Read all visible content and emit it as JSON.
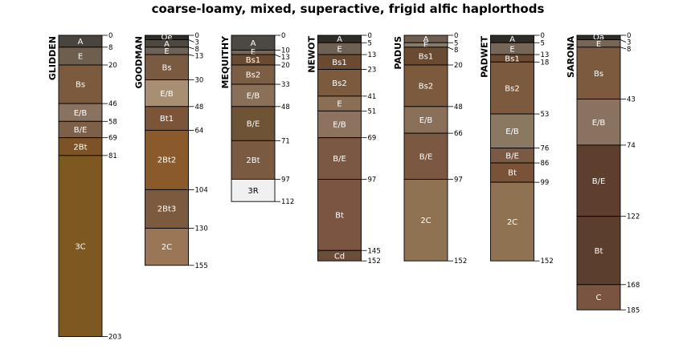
{
  "title": "coarse-loamy, mixed, superactive, frigid alfic haplorthods",
  "max_depth_cm": 203,
  "profiles": [
    {
      "name": "GLIDDEN",
      "horizons": [
        {
          "name": "A",
          "top": 0,
          "bottom": 8,
          "color": "#4a443e"
        },
        {
          "name": "E",
          "top": 8,
          "bottom": 20,
          "color": "#6e5e4e"
        },
        {
          "name": "Bs",
          "top": 20,
          "bottom": 46,
          "color": "#7c5a3e"
        },
        {
          "name": "E/B",
          "top": 46,
          "bottom": 58,
          "color": "#8a7260"
        },
        {
          "name": "B/E",
          "top": 58,
          "bottom": 69,
          "color": "#7e6048"
        },
        {
          "name": "2Bt",
          "top": 69,
          "bottom": 81,
          "color": "#7c5326"
        },
        {
          "name": "3C",
          "top": 81,
          "bottom": 203,
          "color": "#7d5820"
        }
      ]
    },
    {
      "name": "GOODMAN",
      "horizons": [
        {
          "name": "Oe",
          "top": 0,
          "bottom": 3,
          "color": "#2f2b27"
        },
        {
          "name": "A",
          "top": 3,
          "bottom": 8,
          "color": "#4e4840"
        },
        {
          "name": "E",
          "top": 8,
          "bottom": 13,
          "color": "#6e6256"
        },
        {
          "name": "Bs",
          "top": 13,
          "bottom": 30,
          "color": "#7a5a40"
        },
        {
          "name": "E/B",
          "top": 30,
          "bottom": 48,
          "color": "#a88e72"
        },
        {
          "name": "Bt1",
          "top": 48,
          "bottom": 64,
          "color": "#7c5438"
        },
        {
          "name": "2Bt2",
          "top": 64,
          "bottom": 104,
          "color": "#8a5a2a"
        },
        {
          "name": "2Bt3",
          "top": 104,
          "bottom": 130,
          "color": "#7c5a3e"
        },
        {
          "name": "2C",
          "top": 130,
          "bottom": 155,
          "color": "#9a7656"
        }
      ]
    },
    {
      "name": "MEQUITHY",
      "horizons": [
        {
          "name": "A",
          "top": 0,
          "bottom": 10,
          "color": "#4e4842"
        },
        {
          "name": "E",
          "top": 10,
          "bottom": 13,
          "color": "#766658"
        },
        {
          "name": "Bs1",
          "top": 13,
          "bottom": 20,
          "color": "#6a4a30"
        },
        {
          "name": "Bs2",
          "top": 20,
          "bottom": 33,
          "color": "#7c5e44"
        },
        {
          "name": "E/B",
          "top": 33,
          "bottom": 48,
          "color": "#8a7058"
        },
        {
          "name": "B/E",
          "top": 48,
          "bottom": 71,
          "color": "#6e5434"
        },
        {
          "name": "2Bt",
          "top": 71,
          "bottom": 97,
          "color": "#7a5a40"
        },
        {
          "name": "3R",
          "top": 97,
          "bottom": 112,
          "color": "#f0f0f0"
        }
      ]
    },
    {
      "name": "NEWOT",
      "horizons": [
        {
          "name": "A",
          "top": 0,
          "bottom": 5,
          "color": "#2f2b27"
        },
        {
          "name": "E",
          "top": 5,
          "bottom": 13,
          "color": "#6e6052"
        },
        {
          "name": "Bs1",
          "top": 13,
          "bottom": 23,
          "color": "#6a4a30"
        },
        {
          "name": "Bs2",
          "top": 23,
          "bottom": 41,
          "color": "#7c5a3e"
        },
        {
          "name": "E",
          "top": 41,
          "bottom": 51,
          "color": "#8a6e56"
        },
        {
          "name": "E/B",
          "top": 51,
          "bottom": 69,
          "color": "#8e7260"
        },
        {
          "name": "B/E",
          "top": 69,
          "bottom": 97,
          "color": "#7a5844"
        },
        {
          "name": "Bt",
          "top": 97,
          "bottom": 145,
          "color": "#7c5442"
        },
        {
          "name": "Cd",
          "top": 145,
          "bottom": 152,
          "color": "#6a4e3a"
        }
      ]
    },
    {
      "name": "PADUS",
      "horizons": [
        {
          "name": "A",
          "top": 0,
          "bottom": 5,
          "color": "#6e5e50"
        },
        {
          "name": "E",
          "top": 5,
          "bottom": 8,
          "color": "#8a7a6c"
        },
        {
          "name": "Bs1",
          "top": 8,
          "bottom": 20,
          "color": "#6a4a30"
        },
        {
          "name": "Bs2",
          "top": 20,
          "bottom": 48,
          "color": "#7c5a3e"
        },
        {
          "name": "E/B",
          "top": 48,
          "bottom": 66,
          "color": "#8a7058"
        },
        {
          "name": "B/E",
          "top": 66,
          "bottom": 97,
          "color": "#7a5842"
        },
        {
          "name": "2C",
          "top": 97,
          "bottom": 152,
          "color": "#8e7252"
        }
      ]
    },
    {
      "name": "PADWET",
      "horizons": [
        {
          "name": "A",
          "top": 0,
          "bottom": 5,
          "color": "#2f2b27"
        },
        {
          "name": "E",
          "top": 5,
          "bottom": 13,
          "color": "#766658"
        },
        {
          "name": "Bs1",
          "top": 13,
          "bottom": 18,
          "color": "#6a4a30"
        },
        {
          "name": "Bs2",
          "top": 18,
          "bottom": 53,
          "color": "#7c5a3e"
        },
        {
          "name": "E/B",
          "top": 53,
          "bottom": 76,
          "color": "#8a7860"
        },
        {
          "name": "B/E",
          "top": 76,
          "bottom": 86,
          "color": "#7a5a42"
        },
        {
          "name": "Bt",
          "top": 86,
          "bottom": 99,
          "color": "#7a5238"
        },
        {
          "name": "2C",
          "top": 99,
          "bottom": 152,
          "color": "#8e7252"
        }
      ]
    },
    {
      "name": "SARONA",
      "horizons": [
        {
          "name": "Oa",
          "top": 0,
          "bottom": 3,
          "color": "#2f2b27"
        },
        {
          "name": "E",
          "top": 3,
          "bottom": 8,
          "color": "#766658"
        },
        {
          "name": "Bs",
          "top": 8,
          "bottom": 43,
          "color": "#7c5a3e"
        },
        {
          "name": "E/B",
          "top": 43,
          "bottom": 74,
          "color": "#8a7260"
        },
        {
          "name": "B/E",
          "top": 74,
          "bottom": 122,
          "color": "#5e3e2c"
        },
        {
          "name": "Bt",
          "top": 122,
          "bottom": 168,
          "color": "#5c3e2c"
        },
        {
          "name": "C",
          "top": 168,
          "bottom": 185,
          "color": "#7a5440"
        }
      ]
    }
  ]
}
